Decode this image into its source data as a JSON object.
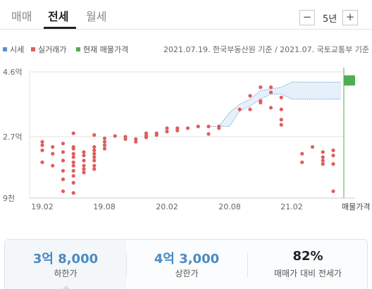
{
  "tabs": [
    {
      "label": "매매",
      "active": false
    },
    {
      "label": "전세",
      "active": true
    },
    {
      "label": "월세",
      "active": false
    }
  ],
  "period": {
    "minus": "−",
    "value": "5년",
    "plus": "+"
  },
  "legend": {
    "items": [
      {
        "label": "시세",
        "color": "#5b8fc7"
      },
      {
        "label": "실거래가",
        "color": "#e05d5d"
      },
      {
        "label": "현재 매물가격",
        "color": "#4caf50"
      }
    ],
    "source": "2021.07.19. 한국부동산원 기준 / 2021.07. 국토교통부 기준"
  },
  "chart_data": {
    "type": "scatter",
    "x_axis": {
      "ticks": [
        "19.02",
        "19.08",
        "20.02",
        "20.08",
        "21.02"
      ],
      "end_label": "매물가격"
    },
    "y_axis": {
      "ticks": [
        "4.6억",
        "2.7억",
        "9천"
      ],
      "min": 0.9,
      "max": 4.6,
      "unit": "억"
    },
    "grid": true,
    "series": [
      {
        "name": "실거래가",
        "color": "#e05d5d",
        "points": [
          [
            "19.02",
            2.55
          ],
          [
            "19.02",
            2.45
          ],
          [
            "19.02",
            2.3
          ],
          [
            "19.02",
            1.95
          ],
          [
            "19.03",
            2.4
          ],
          [
            "19.03",
            2.2
          ],
          [
            "19.03",
            1.85
          ],
          [
            "19.04",
            2.5
          ],
          [
            "19.04",
            2.25
          ],
          [
            "19.04",
            2.0
          ],
          [
            "19.04",
            1.7
          ],
          [
            "19.04",
            1.45
          ],
          [
            "19.04",
            1.1
          ],
          [
            "19.05",
            2.8
          ],
          [
            "19.05",
            2.4
          ],
          [
            "19.05",
            2.35
          ],
          [
            "19.05",
            2.2
          ],
          [
            "19.05",
            2.1
          ],
          [
            "19.05",
            1.95
          ],
          [
            "19.05",
            1.85
          ],
          [
            "19.05",
            1.7
          ],
          [
            "19.05",
            1.55
          ],
          [
            "19.05",
            1.35
          ],
          [
            "19.05",
            1.05
          ],
          [
            "19.06",
            2.25
          ],
          [
            "19.06",
            2.15
          ],
          [
            "19.06",
            2.0
          ],
          [
            "19.06",
            1.85
          ],
          [
            "19.06",
            1.75
          ],
          [
            "19.06",
            1.65
          ],
          [
            "19.07",
            2.75
          ],
          [
            "19.07",
            2.4
          ],
          [
            "19.07",
            2.3
          ],
          [
            "19.07",
            2.2
          ],
          [
            "19.07",
            2.1
          ],
          [
            "19.07",
            2.0
          ],
          [
            "19.07",
            1.85
          ],
          [
            "19.07",
            1.75
          ],
          [
            "19.08",
            2.65
          ],
          [
            "19.08",
            2.55
          ],
          [
            "19.08",
            2.45
          ],
          [
            "19.08",
            2.35
          ],
          [
            "19.09",
            2.72
          ],
          [
            "19.10",
            2.7
          ],
          [
            "19.10",
            2.63
          ],
          [
            "19.11",
            2.63
          ],
          [
            "19.11",
            2.55
          ],
          [
            "19.12",
            2.8
          ],
          [
            "19.12",
            2.73
          ],
          [
            "19.12",
            2.68
          ],
          [
            "20.01",
            2.8
          ],
          [
            "20.01",
            2.75
          ],
          [
            "20.02",
            2.95
          ],
          [
            "20.02",
            2.85
          ],
          [
            "20.03",
            2.95
          ],
          [
            "20.03",
            2.88
          ],
          [
            "20.04",
            2.95
          ],
          [
            "20.05",
            3.0
          ],
          [
            "20.06",
            3.0
          ],
          [
            "20.06",
            2.78
          ],
          [
            "20.07",
            3.0
          ],
          [
            "20.07",
            2.95
          ],
          [
            "20.09",
            3.5
          ],
          [
            "20.10",
            3.9
          ],
          [
            "20.10",
            3.5
          ],
          [
            "20.11",
            4.15
          ],
          [
            "20.11",
            3.75
          ],
          [
            "20.11",
            3.7
          ],
          [
            "20.12",
            4.15
          ],
          [
            "20.12",
            4.0
          ],
          [
            "20.12",
            3.55
          ],
          [
            "21.01",
            3.85
          ],
          [
            "21.01",
            3.5
          ],
          [
            "21.01",
            3.2
          ],
          [
            "21.01",
            3.05
          ],
          [
            "21.03",
            2.2
          ],
          [
            "21.03",
            1.95
          ],
          [
            "21.04",
            2.4
          ],
          [
            "21.05",
            2.25
          ],
          [
            "21.05",
            2.1
          ],
          [
            "21.05",
            2.0
          ],
          [
            "21.05",
            1.9
          ],
          [
            "21.06",
            2.3
          ],
          [
            "21.06",
            2.15
          ],
          [
            "21.06",
            1.9
          ],
          [
            "21.06",
            1.1
          ]
        ]
      },
      {
        "name": "시세",
        "color": "#5b8fc7",
        "band": [
          [
            "20.06",
            3.0,
            3.0
          ],
          [
            "20.07",
            3.0,
            3.0
          ],
          [
            "20.08",
            3.0,
            3.4
          ],
          [
            "20.09",
            3.45,
            3.65
          ],
          [
            "20.10",
            3.6,
            3.8
          ],
          [
            "20.11",
            3.8,
            4.05
          ],
          [
            "20.12",
            3.95,
            4.1
          ],
          [
            "21.01",
            3.95,
            4.15
          ],
          [
            "21.02",
            3.8,
            4.3
          ],
          [
            "21.07",
            3.8,
            4.3
          ]
        ]
      },
      {
        "name": "현재 매물가격",
        "color": "#4caf50",
        "range": [
          4.2,
          4.5
        ],
        "marker_date": "21.07"
      }
    ]
  },
  "summary": [
    {
      "value": "3억 8,000",
      "label": "하한가",
      "color": "#4a8ac2",
      "selected": true
    },
    {
      "value": "4억 3,000",
      "label": "상한가",
      "color": "#4a8ac2",
      "selected": false
    },
    {
      "value": "82%",
      "label": "매매가 대비 전세가",
      "color": "#222222",
      "selected": false
    }
  ]
}
